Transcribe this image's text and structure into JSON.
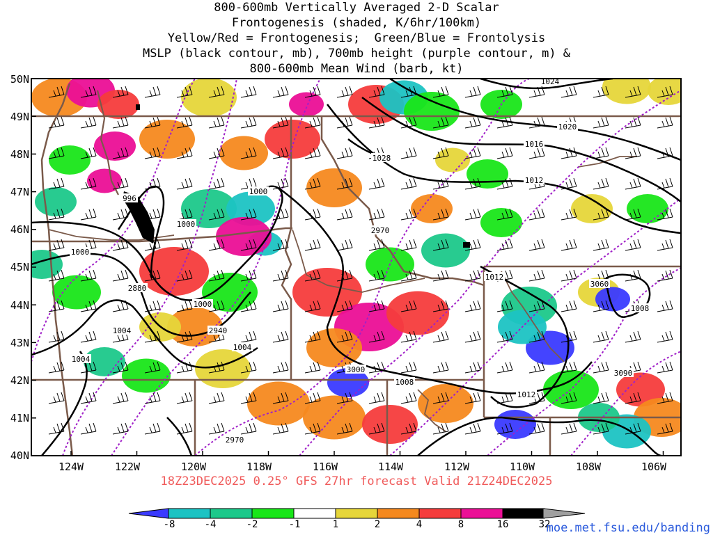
{
  "header": {
    "title_lines": [
      "800-600mb Vertically Averaged 2-D Scalar",
      "Frontogenesis (shaded, K/6hr/100km)",
      "Yellow/Red = Frontogenesis;  Green/Blue = Frontolysis",
      "MSLP (black contour, mb), 700mb height (purple contour, m) &",
      "800-600mb Mean Wind (barb, kt)"
    ]
  },
  "axes": {
    "lat_labels": [
      "50N",
      "49N",
      "48N",
      "47N",
      "46N",
      "45N",
      "44N",
      "43N",
      "42N",
      "41N",
      "40N"
    ],
    "lon_labels": [
      "124W",
      "122W",
      "120W",
      "118W",
      "116W",
      "114W",
      "112W",
      "110W",
      "108W",
      "106W"
    ]
  },
  "contour_labels": {
    "mslp": [
      "1024",
      "1020",
      "1016",
      "1012",
      "1028",
      "996",
      "1000",
      "1000",
      "1000",
      "1000",
      "1004",
      "1004",
      "1004",
      "1008",
      "1012",
      "1012",
      "1008"
    ],
    "height": [
      "2880",
      "2940",
      "2970",
      "3000",
      "3060",
      "3090",
      "2970"
    ]
  },
  "footer": {
    "valid_text": "18Z23DEC2025 0.25° GFS 27hr forecast Valid 21Z24DEC2025",
    "credit": "moe.met.fsu.edu/banding"
  },
  "colorbar": {
    "ticks": [
      "-8",
      "-4",
      "-2",
      "-1",
      "1",
      "2",
      "4",
      "8",
      "16",
      "32"
    ],
    "colors": [
      "#3a3aff",
      "#1cc3c3",
      "#1cc88a",
      "#19e619",
      "#ffffff",
      "#e6d63a",
      "#f5891f",
      "#f53c3c",
      "#eb0f96",
      "#000000",
      "#a0a0a0"
    ]
  },
  "palette": {
    "state_border": "#7a5a4a",
    "mslp": "#000000",
    "height": "#a020c8"
  }
}
